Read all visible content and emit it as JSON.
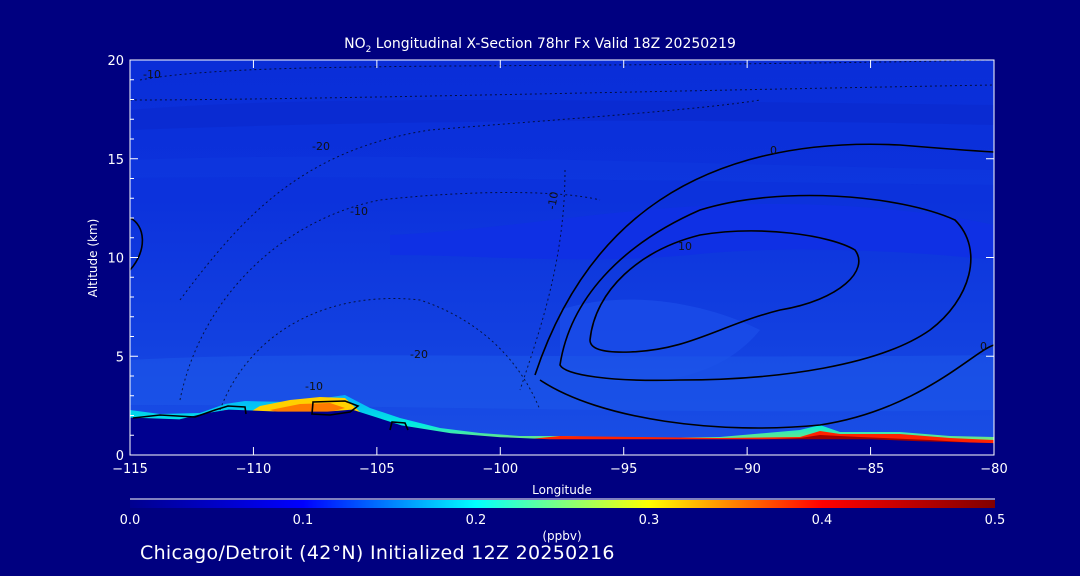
{
  "title": {
    "prefix": "NO",
    "sub": "2",
    "rest": " Longitudinal X-Section 78hr  Fx Valid 18Z 20250219"
  },
  "footer": "Chicago/Detroit (42°N) Initialized 12Z 20250216",
  "colors": {
    "background": "#000080",
    "text": "#ffffff"
  },
  "chart_data": {
    "type": "heatmap",
    "xlabel": "Longitude",
    "ylabel": "Altitude (km)",
    "xlim": [
      -115,
      -80
    ],
    "ylim": [
      0,
      20
    ],
    "x_ticks": [
      -115,
      -110,
      -105,
      -100,
      -95,
      -90,
      -85,
      -80
    ],
    "x_tick_labels": [
      "−115",
      "−110",
      "−105",
      "−100",
      "−95",
      "−90",
      "−85",
      "−80"
    ],
    "y_ticks": [
      0,
      5,
      10,
      15,
      20
    ],
    "y_tick_labels": [
      "0",
      "5",
      "10",
      "15",
      "20"
    ],
    "colorbar": {
      "label": "(ppbv)",
      "range": [
        0,
        0.5
      ],
      "ticks": [
        0.0,
        0.1,
        0.2,
        0.3,
        0.4,
        0.5
      ],
      "tick_labels": [
        "0.0",
        "0.1",
        "0.2",
        "0.3",
        "0.4",
        "0.5"
      ],
      "colormap": [
        "#00008f",
        "#0000ff",
        "#00ffff",
        "#ffff00",
        "#ff0000",
        "#800000"
      ]
    },
    "terrain_km": [
      [
        -115,
        1.9
      ],
      [
        -113,
        1.8
      ],
      [
        -112,
        2.1
      ],
      [
        -111,
        2.3
      ],
      [
        -109,
        2.2
      ],
      [
        -107,
        2.2
      ],
      [
        -106,
        2.3
      ],
      [
        -105,
        1.9
      ],
      [
        -104,
        1.5
      ],
      [
        -102,
        1.1
      ],
      [
        -100,
        0.9
      ],
      [
        -98,
        0.8
      ],
      [
        -95,
        0.8
      ],
      [
        -92,
        0.8
      ],
      [
        -88,
        0.8
      ],
      [
        -85,
        0.8
      ],
      [
        -83,
        0.7
      ],
      [
        -80,
        0.6
      ]
    ],
    "contour_labels": [
      "-10",
      "-20",
      "-10",
      "-20",
      "-10",
      "0",
      "10",
      "0",
      "-10"
    ]
  }
}
